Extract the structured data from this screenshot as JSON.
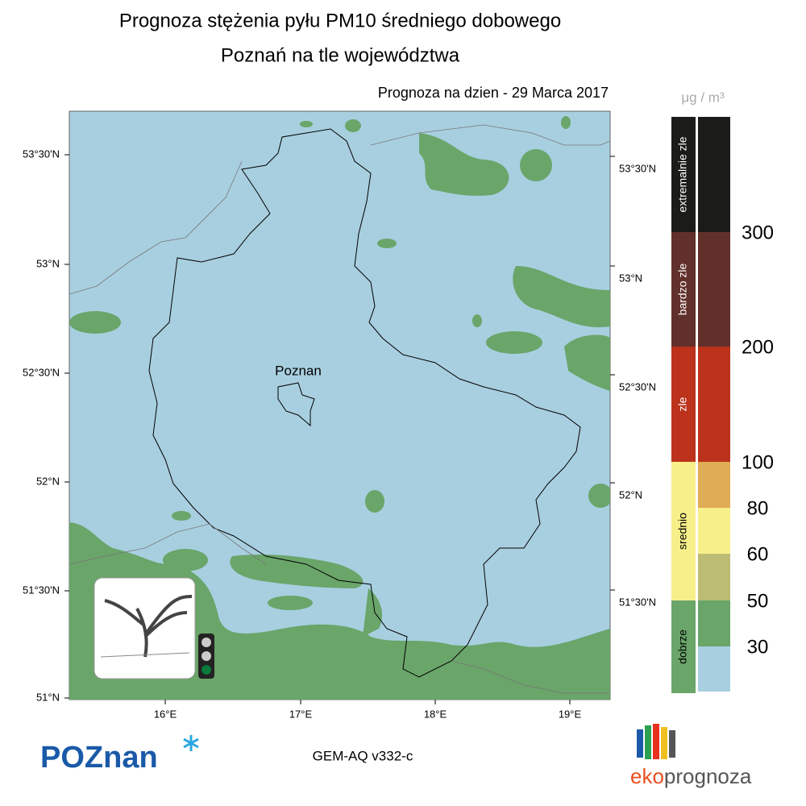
{
  "header": {
    "title": "Prognoza stężenia pyłu PM10 średniego dobowego",
    "subtitle": "Poznań na tle województwa",
    "date_line": "Prognoza na dzien -  29 Marca 2017"
  },
  "map": {
    "city_label": "Poznan",
    "lat_labels_left": [
      "53°30'N",
      "53°N",
      "52°30'N",
      "52°N",
      "51°30'N",
      "51°N"
    ],
    "lat_labels_right": [
      "53°30'N",
      "53°N",
      "52°30'N",
      "52°N",
      "51°30'N"
    ],
    "lon_labels": [
      "16°E",
      "17°E",
      "18°E",
      "19°E"
    ]
  },
  "legend": {
    "unit": "μg / m³",
    "categories": [
      {
        "label": "extremalnie zle",
        "color": "#1b1b19"
      },
      {
        "label": "bardzo zle",
        "color": "#62302a"
      },
      {
        "label": "zle",
        "color": "#bc321b"
      },
      {
        "label": "srednio",
        "color": "#f7ef8a"
      },
      {
        "label": "dobrze",
        "color": "#6aa56a"
      }
    ],
    "bands": [
      {
        "color": "#1b1b19"
      },
      {
        "color": "#62302a"
      },
      {
        "color": "#bc321b"
      },
      {
        "color": "#e0ac54"
      },
      {
        "color": "#f7ef8a"
      },
      {
        "color": "#bcbc74"
      },
      {
        "color": "#6aa56a"
      },
      {
        "color": "#a8cfe0"
      }
    ],
    "levels": [
      "300",
      "200",
      "100",
      "80",
      "60",
      "50",
      "30"
    ]
  },
  "footer": {
    "model": "GEM-AQ v332-c",
    "logo_left": "POZnan",
    "logo_right_a": "eko",
    "logo_right_b": "prognoza"
  }
}
